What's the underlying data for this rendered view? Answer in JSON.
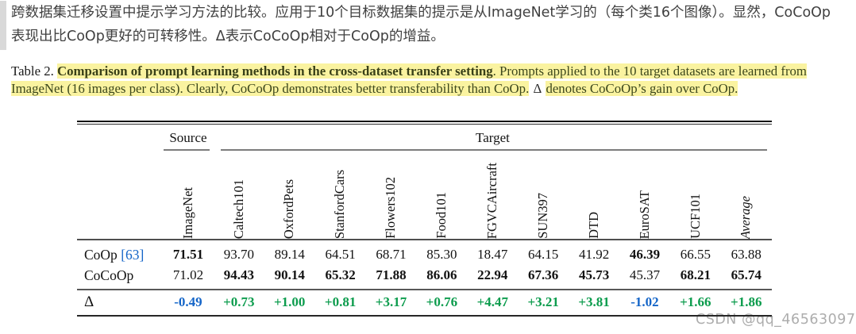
{
  "quote": {
    "text": "跨数据集迁移设置中提示学习方法的比较。应用于10个目标数据集的提示是从ImageNet学习的（每个类16个图像）。显然，CoCoOp表现出比CoOp更好的可转移性。Δ表示CoCoOp相对于CoOp的增益。"
  },
  "caption": {
    "label": "Table 2.",
    "title_bold": "Comparison of prompt learning methods in the cross-dataset transfer setting",
    "body_1": ". Prompts applied to the 10 target datasets are learned from ImageNet (16 images per class). Clearly, CoCoOp demonstrates better transferability than CoOp.",
    "delta_symbol": "Δ",
    "body_2": "denotes CoCoOp’s gain over CoOp."
  },
  "table": {
    "group_headers": {
      "source": "Source",
      "target": "Target"
    },
    "columns": [
      "ImageNet",
      "Caltech101",
      "OxfordPets",
      "StanfordCars",
      "Flowers102",
      "Food101",
      "FGVCAircraft",
      "SUN397",
      "DTD",
      "EuroSAT",
      "UCF101",
      "Average"
    ],
    "rows": {
      "coop": {
        "label": "CoOp",
        "citation": "[63]",
        "values": [
          "71.51",
          "93.70",
          "89.14",
          "64.51",
          "68.71",
          "85.30",
          "18.47",
          "64.15",
          "41.92",
          "46.39",
          "66.55",
          "63.88"
        ]
      },
      "cocoop": {
        "label": "CoCoOp",
        "values": [
          "71.02",
          "94.43",
          "90.14",
          "65.32",
          "71.88",
          "86.06",
          "22.94",
          "67.36",
          "45.73",
          "45.37",
          "68.21",
          "65.74"
        ]
      },
      "delta": {
        "label": "Δ",
        "values": [
          "-0.49",
          "+0.73",
          "+1.00",
          "+0.81",
          "+3.17",
          "+0.76",
          "+4.47",
          "+3.21",
          "+3.81",
          "-1.02",
          "+1.66",
          "+1.86"
        ]
      }
    },
    "colors": {
      "gain_green": "#0c9c4d",
      "loss_blue": "#1465c8",
      "citation_blue": "#1465c8",
      "highlight_yellow": "#faf3a0"
    }
  },
  "watermark": {
    "text": "CSDN @qq_46563097"
  }
}
